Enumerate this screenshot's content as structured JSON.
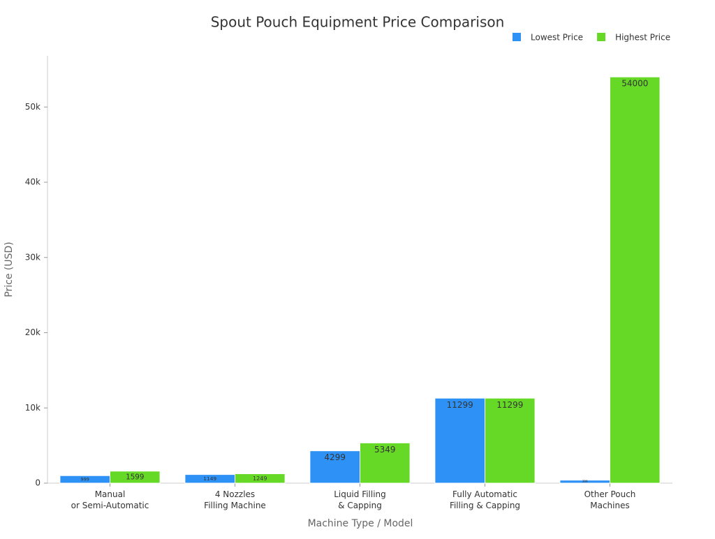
{
  "chart_data": {
    "type": "bar",
    "title": "Spout Pouch Equipment Price Comparison",
    "x_label": "Machine Type / Model",
    "y_label": "Price (USD)",
    "categories": [
      "Manual\nor Semi-Automatic",
      "4 Nozzles\nFilling Machine",
      "Liquid Filling\n& Capping",
      "Fully Automatic\nFilling & Capping",
      "Other Pouch\nMachines"
    ],
    "series": [
      {
        "name": "Lowest Price",
        "color": "#2e91f5",
        "values": [
          999,
          1149,
          4299,
          11299,
          399
        ]
      },
      {
        "name": "Highest Price",
        "color": "#66d926",
        "values": [
          1599,
          1249,
          5349,
          11299,
          54000
        ]
      }
    ],
    "ylim": [
      0,
      56800
    ],
    "yticks": [
      0,
      {
        "value": 10000,
        "label": "10k"
      },
      {
        "value": 20000,
        "label": "20k"
      },
      {
        "value": 30000,
        "label": "30k"
      },
      {
        "value": 40000,
        "label": "40k"
      },
      {
        "value": 50000,
        "label": "50k"
      }
    ],
    "legend": "top-right"
  }
}
